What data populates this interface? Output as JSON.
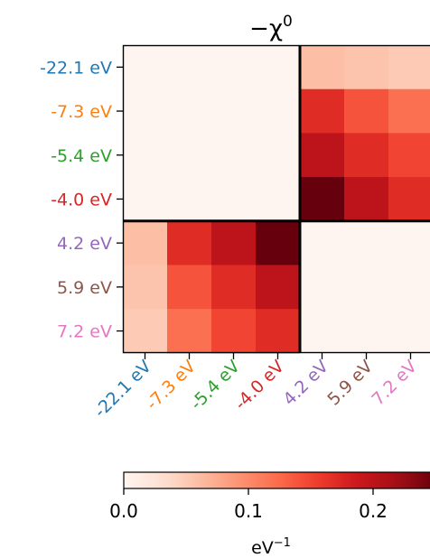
{
  "chart_data": {
    "type": "heatmap",
    "title": "−χ",
    "title_superscript": "0",
    "row_labels": [
      "-22.1 eV",
      "-7.3 eV",
      "-5.4 eV",
      "-4.0 eV",
      "4.2 eV",
      "5.9 eV",
      "7.2 eV"
    ],
    "col_labels": [
      "-22.1 eV",
      "-7.3 eV",
      "-5.4 eV",
      "-4.0 eV",
      "4.2 eV",
      "5.9 eV",
      "7.2 eV"
    ],
    "label_colors": [
      "#1f77b4",
      "#ff7f0e",
      "#2ca02c",
      "#d62728",
      "#9467bd",
      "#8c564b",
      "#e377c2"
    ],
    "values": [
      [
        0,
        0,
        0,
        0,
        0.06,
        0.055,
        0.05
      ],
      [
        0,
        0,
        0,
        0,
        0.17,
        0.14,
        0.12
      ],
      [
        0,
        0,
        0,
        0,
        0.2,
        0.17,
        0.15
      ],
      [
        0,
        0,
        0,
        0,
        0.25,
        0.2,
        0.17
      ],
      [
        0.06,
        0.17,
        0.2,
        0.25,
        0,
        0,
        0
      ],
      [
        0.055,
        0.14,
        0.17,
        0.2,
        0,
        0,
        0
      ],
      [
        0.05,
        0.12,
        0.15,
        0.17,
        0,
        0,
        0
      ]
    ],
    "colorbar": {
      "range": [
        0,
        0.25
      ],
      "ticks": [
        0.0,
        0.1,
        0.2
      ],
      "tick_labels": [
        "0.0",
        "0.1",
        "0.2"
      ],
      "label": "eV",
      "label_superscript": "−1",
      "colormap": "Reds"
    },
    "block_divider_after_index": 3
  }
}
